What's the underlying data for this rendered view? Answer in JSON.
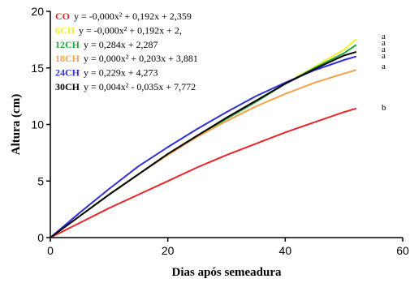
{
  "chart_data": {
    "type": "line",
    "xlabel": "Dias após semeadura",
    "ylabel": "Altura (cm)",
    "xlim": [
      0,
      60
    ],
    "ylim": [
      0,
      20
    ],
    "x_ticks": [
      "0",
      "20",
      "40",
      "60"
    ],
    "y_ticks": [
      "0",
      "5",
      "10",
      "15",
      "20"
    ],
    "grid": false,
    "legend": "top-left",
    "series": [
      {
        "name": "CO",
        "equation": "y = -0,000x² + 0,192x + 2,359",
        "color": "#e8262a",
        "significance": "b",
        "x": [
          0,
          5,
          10,
          15,
          20,
          25,
          30,
          35,
          40,
          45,
          50,
          52
        ],
        "y": [
          0,
          1.3,
          2.6,
          3.8,
          5.0,
          6.2,
          7.3,
          8.3,
          9.3,
          10.2,
          11.1,
          11.4
        ]
      },
      {
        "name": "6CH",
        "equation": "y = -0,000x² + 0,192x + 2,",
        "color": "#f2ef2a",
        "significance": "a",
        "x": [
          0,
          5,
          10,
          15,
          20,
          25,
          30,
          35,
          40,
          45,
          50,
          52
        ],
        "y": [
          0,
          1.9,
          3.8,
          5.6,
          7.4,
          9.0,
          10.5,
          12.0,
          13.6,
          15.1,
          16.6,
          17.5
        ]
      },
      {
        "name": "12CH",
        "equation": "y = 0,284x + 2,287",
        "color": "#1fa83a",
        "significance": "a",
        "x": [
          0,
          5,
          10,
          15,
          20,
          25,
          30,
          35,
          40,
          45,
          50,
          52
        ],
        "y": [
          0,
          1.9,
          3.8,
          5.6,
          7.4,
          9.0,
          10.5,
          12.0,
          13.6,
          15.0,
          16.3,
          17.0
        ]
      },
      {
        "name": "18CH",
        "equation": "y = 0,000x² + 0,203x + 3,881",
        "color": "#f5a04a",
        "significance": "a",
        "x": [
          0,
          5,
          10,
          15,
          20,
          25,
          30,
          35,
          40,
          45,
          50,
          52
        ],
        "y": [
          0,
          1.9,
          3.8,
          5.6,
          7.3,
          8.9,
          10.3,
          11.6,
          12.7,
          13.7,
          14.5,
          14.8
        ]
      },
      {
        "name": "24CH",
        "equation": "y = 0,229x + 4,273",
        "color": "#2f2fd6",
        "significance": "a",
        "x": [
          0,
          5,
          10,
          15,
          20,
          25,
          30,
          35,
          40,
          45,
          50,
          52
        ],
        "y": [
          0,
          2.2,
          4.3,
          6.3,
          8.0,
          9.6,
          11.1,
          12.5,
          13.7,
          14.8,
          15.7,
          16.0
        ]
      },
      {
        "name": "30CH",
        "equation": "y = 0,004x² - 0,035x + 7,772",
        "color": "#000000",
        "significance": "a",
        "x": [
          0,
          5,
          10,
          15,
          20,
          25,
          30,
          35,
          40,
          45,
          50,
          52
        ],
        "y": [
          0,
          1.9,
          3.8,
          5.6,
          7.4,
          9.0,
          10.6,
          12.1,
          13.6,
          14.9,
          16.1,
          16.4
        ]
      }
    ]
  }
}
